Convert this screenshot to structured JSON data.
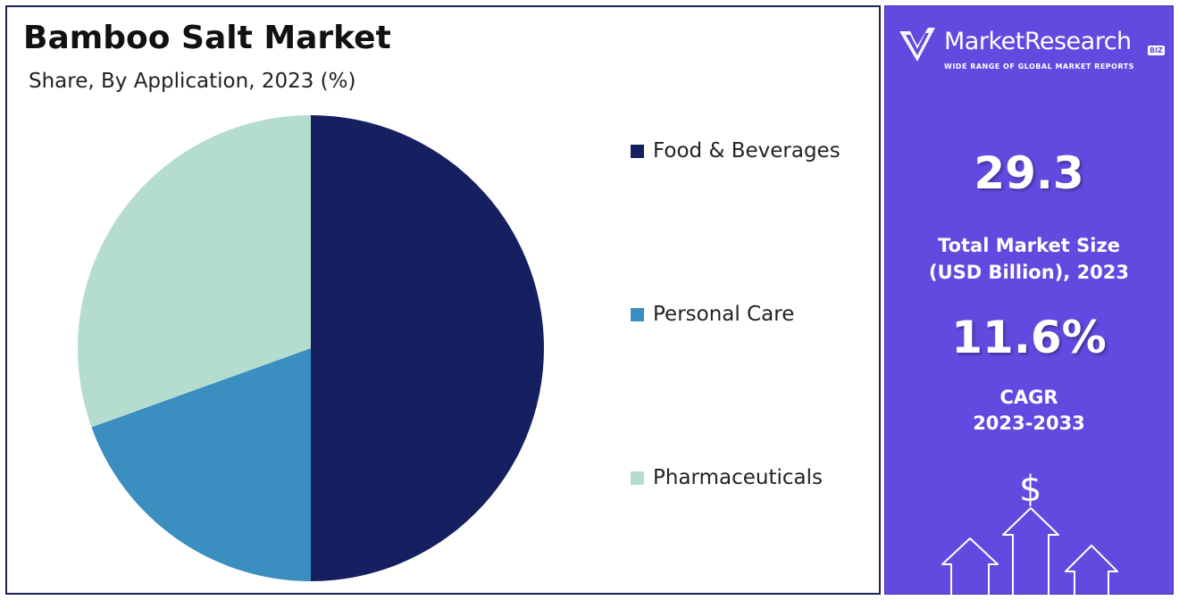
{
  "header": {
    "title": "Bamboo Salt Market",
    "subtitle": "Share, By Application, 2023 (%)"
  },
  "chart_data": {
    "type": "pie",
    "title": "Bamboo Salt Market",
    "subtitle": "Share, By Application, 2023 (%)",
    "categories": [
      "Food & Beverages",
      "Personal Care",
      "Pharmaceuticals"
    ],
    "values": [
      50.0,
      19.5,
      30.5
    ],
    "colors": [
      "#162060",
      "#3a8fc0",
      "#b4ddd0"
    ],
    "start_angle_deg": 0,
    "direction": "clockwise",
    "legend_position": "right"
  },
  "legend": {
    "items": [
      {
        "label": "Food & Beverages",
        "color": "#162060"
      },
      {
        "label": "Personal Care",
        "color": "#3a8fc0"
      },
      {
        "label": "Pharmaceuticals",
        "color": "#b4ddd0"
      }
    ]
  },
  "sidebar": {
    "background": "#6449e0",
    "logo": {
      "name": "MarketResearch",
      "badge": "BIZ",
      "tagline": "WIDE RANGE OF GLOBAL MARKET REPORTS"
    },
    "market_size": {
      "value": "29.3",
      "label_line1": "Total Market Size",
      "label_line2": "(USD Billion), 2023"
    },
    "cagr": {
      "value": "11.6%",
      "label_line1": "CAGR",
      "label_line2": "2023-2033"
    },
    "decoration": {
      "dollar_symbol": "$",
      "icon": "growth-arrows-icon"
    }
  }
}
